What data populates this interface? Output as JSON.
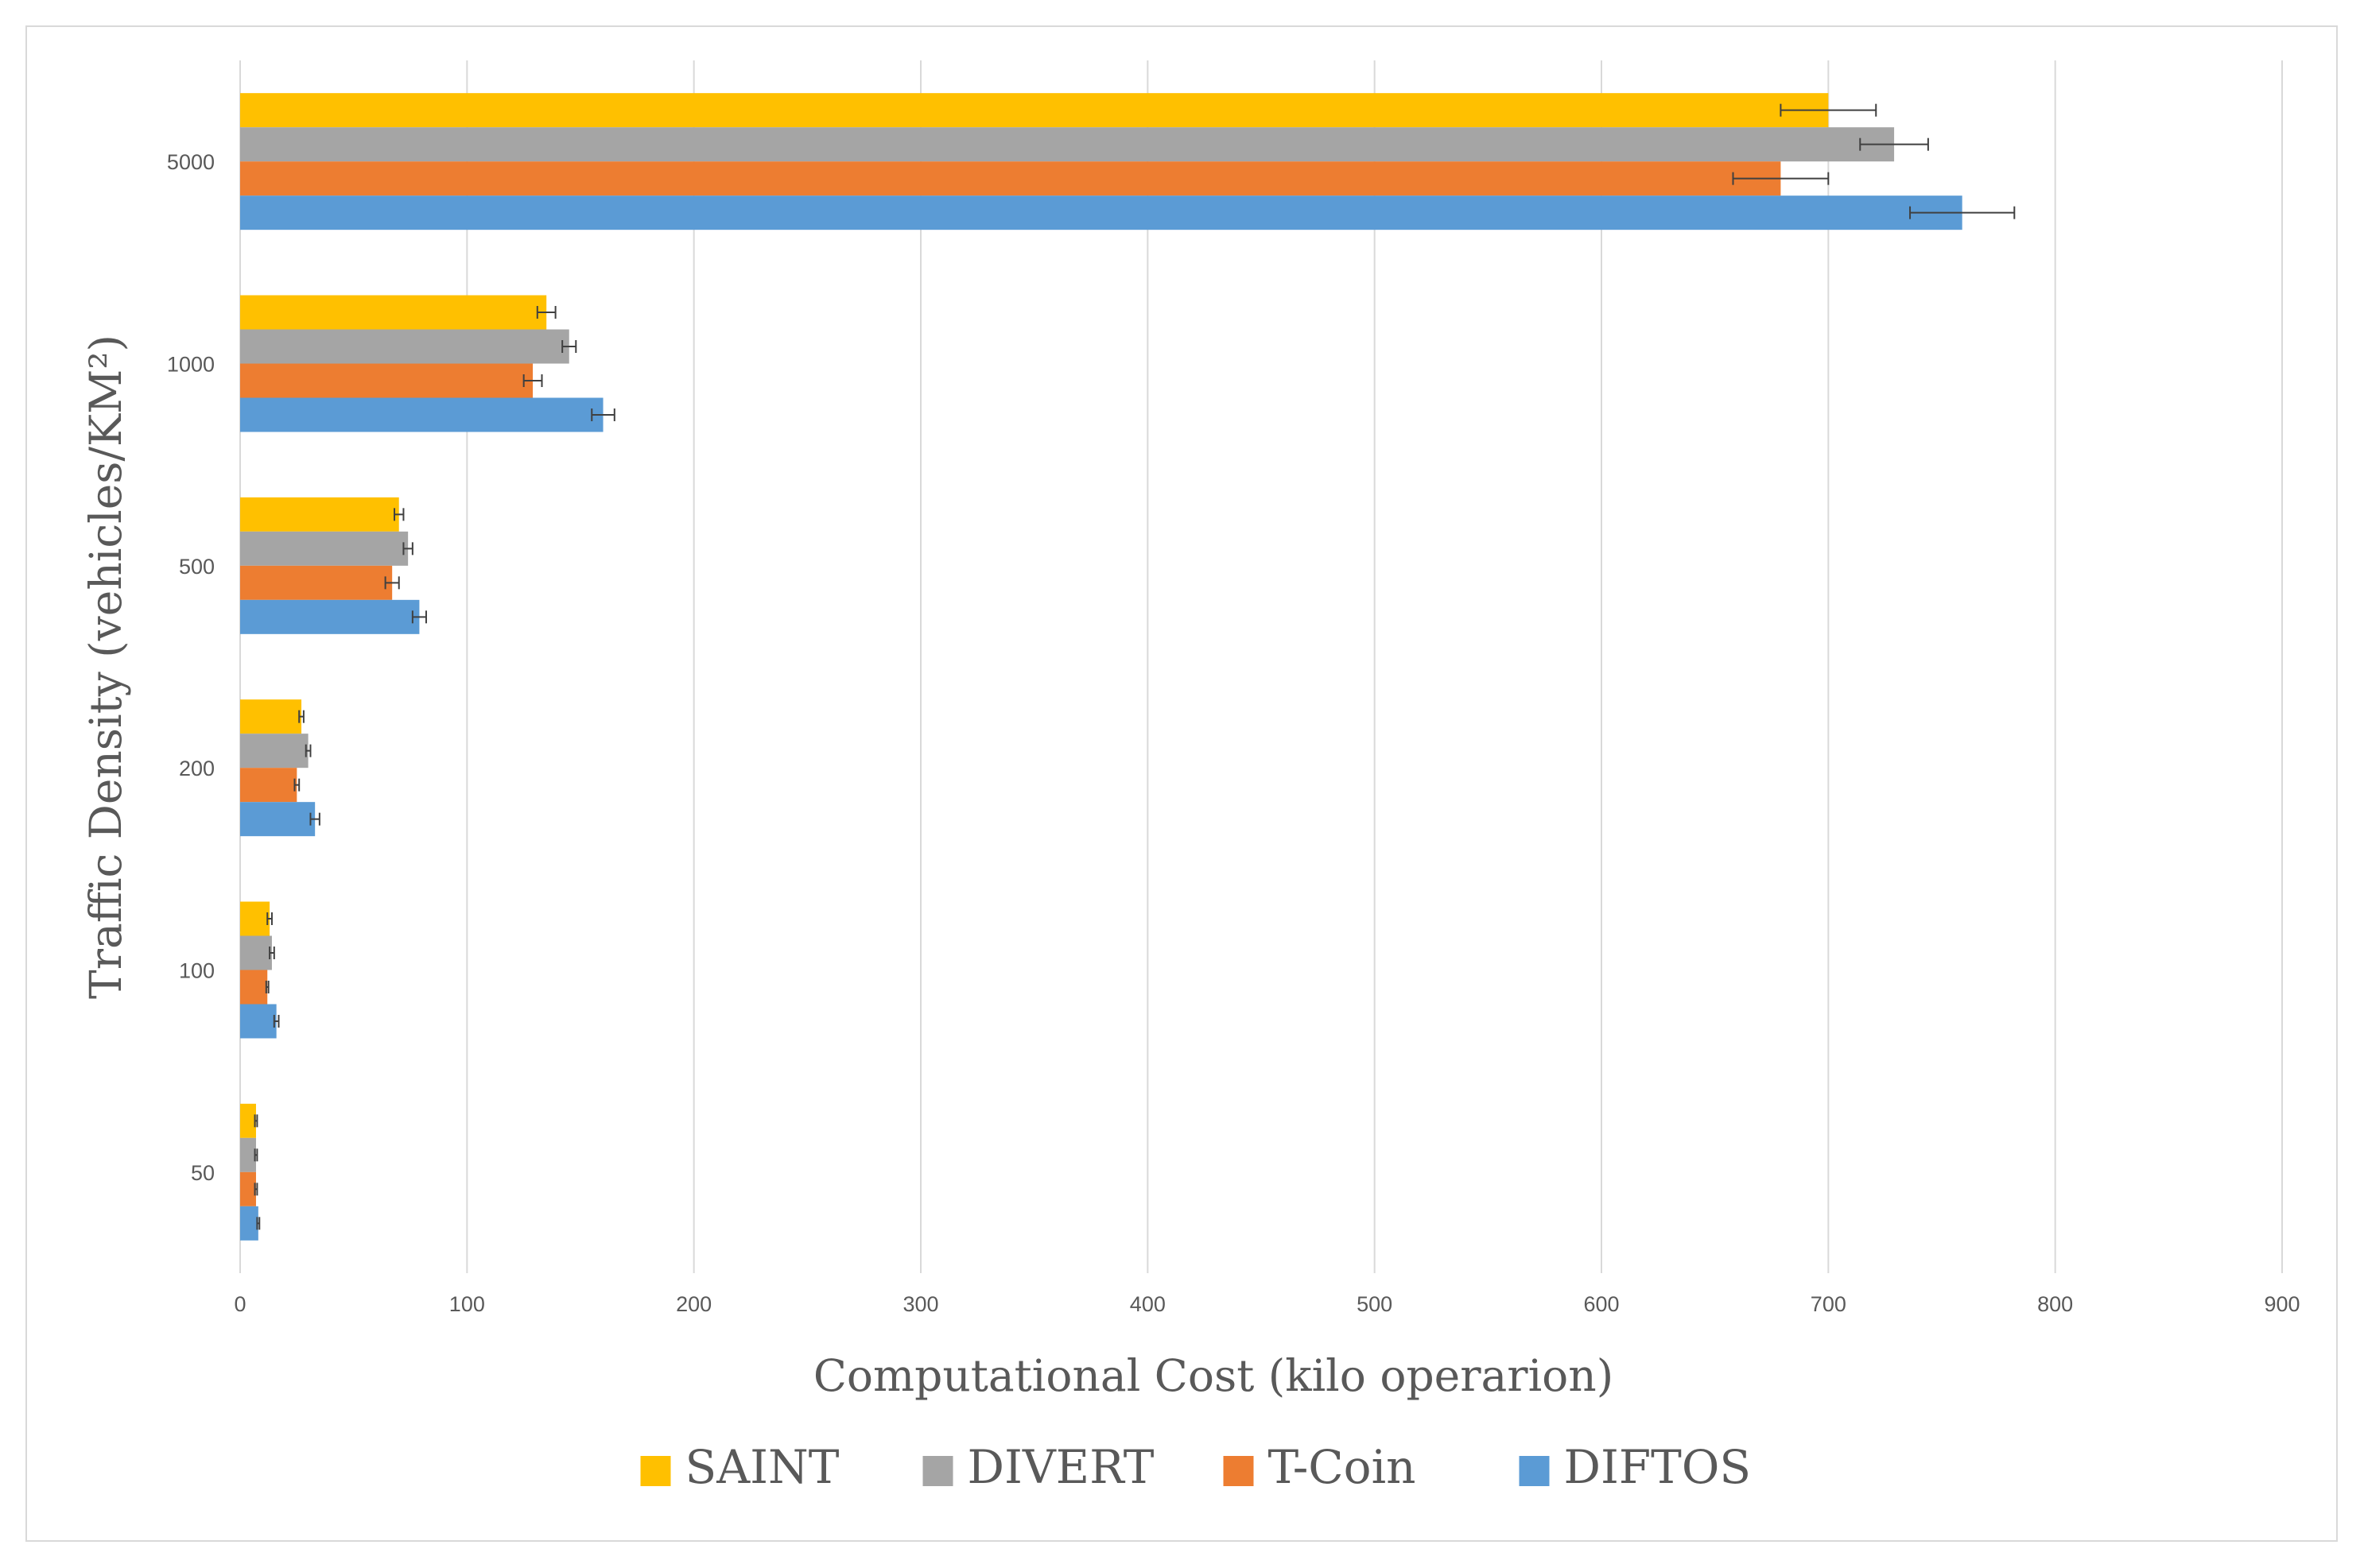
{
  "chart_data": {
    "type": "bar",
    "orientation": "horizontal",
    "categories": [
      "5000",
      "1000",
      "500",
      "200",
      "100",
      "50"
    ],
    "xlabel": "Computational Cost (kilo operarion)",
    "ylabel": "Traffic Density (vehicles/KM²)",
    "xlim": [
      0,
      900
    ],
    "xticks": [
      "0",
      "100",
      "200",
      "300",
      "400",
      "500",
      "600",
      "700",
      "800",
      "900"
    ],
    "grid": "vertical gridlines",
    "legend_position": "bottom",
    "series": [
      {
        "name": "SAINT",
        "color": "#FFC000",
        "values": [
          700,
          135,
          70,
          27,
          13,
          7
        ],
        "errors": [
          21,
          4,
          2,
          1,
          1,
          0.5
        ]
      },
      {
        "name": "DIVERT",
        "color": "#A5A5A5",
        "values": [
          729,
          145,
          74,
          30,
          14,
          7
        ],
        "errors": [
          15,
          3,
          2,
          1,
          1,
          0.5
        ]
      },
      {
        "name": "T-Coin",
        "color": "#ED7D31",
        "values": [
          679,
          129,
          67,
          25,
          12,
          7
        ],
        "errors": [
          21,
          4,
          3,
          1,
          0.5,
          0.5
        ]
      },
      {
        "name": "DIFTOS",
        "color": "#5B9BD5",
        "values": [
          759,
          160,
          79,
          33,
          16,
          8
        ],
        "errors": [
          23,
          5,
          3,
          2,
          1,
          0.5
        ]
      }
    ]
  }
}
